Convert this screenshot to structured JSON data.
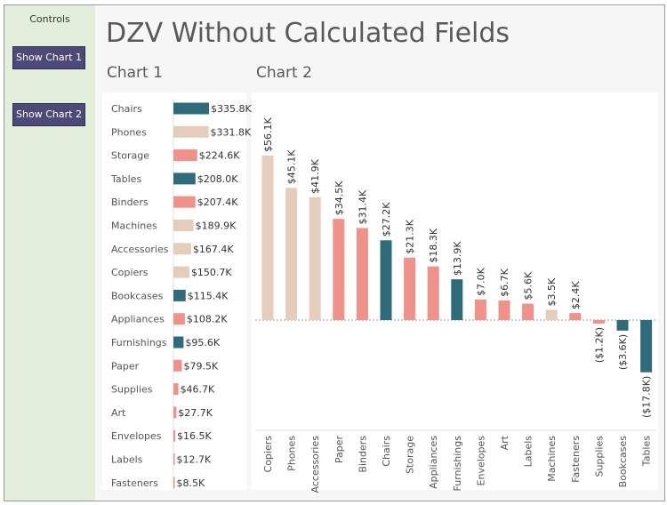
{
  "title": "DZV Without Calculated Fields",
  "controls": {
    "title": "Controls",
    "buttons": [
      "Show Chart 1",
      "Show Chart 2"
    ]
  },
  "colors": {
    "dark_teal": "#2e6b7b",
    "salmon": "#f0928a",
    "beige": "#e6cdbb",
    "sidebar_bg": "#e2efda",
    "button_bg": "#4d4a7a"
  },
  "chart_data": [
    {
      "type": "bar",
      "orientation": "horizontal",
      "title": "Chart 1",
      "categories": [
        "Chairs",
        "Phones",
        "Storage",
        "Tables",
        "Binders",
        "Machines",
        "Accessories",
        "Copiers",
        "Bookcases",
        "Appliances",
        "Furnishings",
        "Paper",
        "Supplies",
        "Art",
        "Envelopes",
        "Labels",
        "Fasteners"
      ],
      "values": [
        335.8,
        331.8,
        224.6,
        208.0,
        207.4,
        189.9,
        167.4,
        150.7,
        115.4,
        108.2,
        95.6,
        79.5,
        46.7,
        27.7,
        16.5,
        12.7,
        8.5
      ],
      "labels": [
        "$335.8K",
        "$331.8K",
        "$224.6K",
        "$208.0K",
        "$207.4K",
        "$189.9K",
        "$167.4K",
        "$150.7K",
        "$115.4K",
        "$108.2K",
        "$95.6K",
        "$79.5K",
        "$46.7K",
        "$27.7K",
        "$16.5K",
        "$12.7K",
        "$8.5K"
      ],
      "color_groups": [
        "dark_teal",
        "beige",
        "salmon",
        "dark_teal",
        "salmon",
        "beige",
        "beige",
        "beige",
        "dark_teal",
        "salmon",
        "dark_teal",
        "salmon",
        "salmon",
        "salmon",
        "salmon",
        "salmon",
        "salmon"
      ]
    },
    {
      "type": "bar",
      "orientation": "vertical",
      "title": "Chart 2",
      "categories": [
        "Copiers",
        "Phones",
        "Accessories",
        "Paper",
        "Binders",
        "Chairs",
        "Storage",
        "Appliances",
        "Furnishings",
        "Envelopes",
        "Art",
        "Labels",
        "Machines",
        "Fasteners",
        "Supplies",
        "Bookcases",
        "Tables"
      ],
      "values": [
        56.1,
        45.1,
        41.9,
        34.5,
        31.4,
        27.2,
        21.3,
        18.3,
        13.9,
        7.0,
        6.7,
        5.6,
        3.5,
        2.4,
        -1.2,
        -3.6,
        -17.8
      ],
      "labels": [
        "$56.1K",
        "$45.1K",
        "$41.9K",
        "$34.5K",
        "$31.4K",
        "$27.2K",
        "$21.3K",
        "$18.3K",
        "$13.9K",
        "$7.0K",
        "$6.7K",
        "$5.6K",
        "$3.5K",
        "$2.4K",
        "($1.2K)",
        "($3.6K)",
        "($17.8K)"
      ],
      "color_groups": [
        "beige",
        "beige",
        "beige",
        "salmon",
        "salmon",
        "dark_teal",
        "salmon",
        "salmon",
        "dark_teal",
        "salmon",
        "salmon",
        "salmon",
        "beige",
        "salmon",
        "salmon",
        "dark_teal",
        "dark_teal"
      ],
      "zero_line": true
    }
  ]
}
